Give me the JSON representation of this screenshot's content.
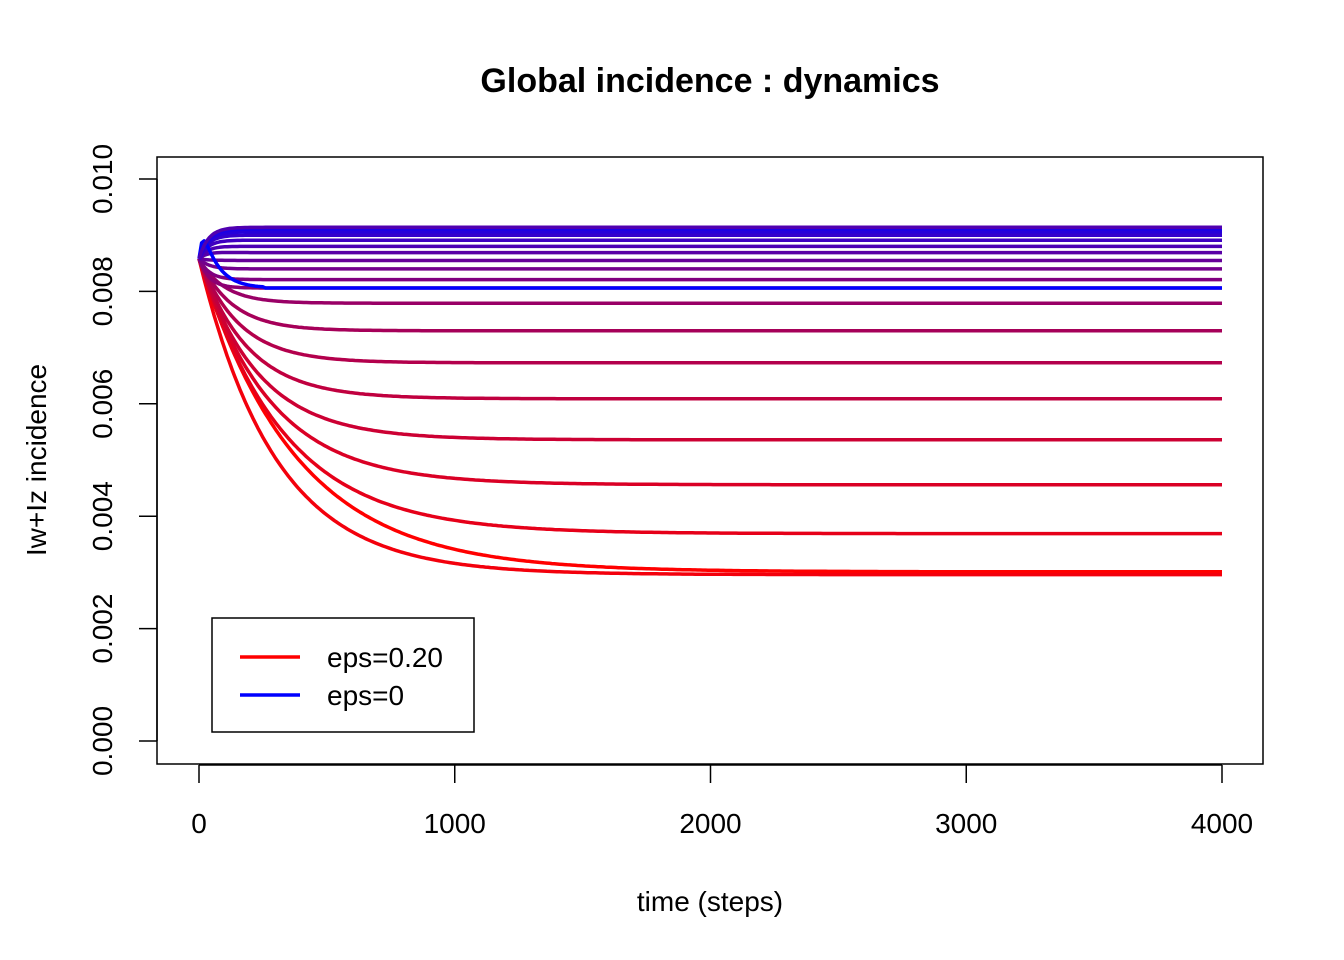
{
  "chart_data": {
    "type": "line",
    "title": "Global incidence : dynamics",
    "xlabel": "time (steps)",
    "ylabel": "Iw+Iz incidence",
    "xlim": [
      0,
      4000
    ],
    "ylim": [
      0.0,
      0.01
    ],
    "xticks": [
      0,
      1000,
      2000,
      3000,
      4000
    ],
    "xtick_labels": [
      "0",
      "1000",
      "2000",
      "3000",
      "4000"
    ],
    "yticks": [
      0.0,
      0.002,
      0.004,
      0.006,
      0.008,
      0.01
    ],
    "ytick_labels": [
      "0.000",
      "0.002",
      "0.004",
      "0.006",
      "0.008",
      "0.010"
    ],
    "grid": false,
    "legend_position": "bottom-left",
    "legend": [
      {
        "label": "eps=0.20",
        "color": "#ff0000"
      },
      {
        "label": "eps=0",
        "color": "#0000ff"
      }
    ],
    "start_value": 0.00858,
    "series": [
      {
        "color": "#ff0000",
        "final": 0.00301,
        "tau": 380
      },
      {
        "color": "#f3000c",
        "final": 0.00296,
        "tau": 300
      },
      {
        "color": "#e60019",
        "final": 0.00369,
        "tau": 330
      },
      {
        "color": "#da0025",
        "final": 0.00456,
        "tau": 280
      },
      {
        "color": "#cc0033",
        "final": 0.00536,
        "tau": 230
      },
      {
        "color": "#c0003f",
        "final": 0.00609,
        "tau": 190
      },
      {
        "color": "#b3004c",
        "final": 0.00673,
        "tau": 160
      },
      {
        "color": "#a60059",
        "final": 0.0073,
        "tau": 130
      },
      {
        "color": "#990066",
        "final": 0.00779,
        "tau": 100
      },
      {
        "color": "#8c0073",
        "final": 0.00806,
        "tau": 40
      },
      {
        "color": "#80007f",
        "final": 0.00821,
        "tau": 40
      },
      {
        "color": "#73008c",
        "final": 0.0084,
        "tau": 40
      },
      {
        "color": "#660099",
        "final": 0.00855,
        "tau": 40
      },
      {
        "color": "#5900a6",
        "final": 0.00869,
        "tau": 40
      },
      {
        "color": "#4c00b3",
        "final": 0.0088,
        "tau": 40
      },
      {
        "color": "#3f00c0",
        "final": 0.00891,
        "tau": 40
      },
      {
        "color": "#3300cc",
        "final": 0.009,
        "tau": 40
      },
      {
        "color": "#2500da",
        "final": 0.00906,
        "tau": 40
      },
      {
        "color": "#1900e6",
        "final": 0.00911,
        "tau": 40
      },
      {
        "color": "#0000ff",
        "final": 0.00806,
        "tau": 40,
        "overshoot": true
      },
      {
        "color": "#5000b0",
        "final": 0.00914,
        "tau": 40
      }
    ]
  }
}
